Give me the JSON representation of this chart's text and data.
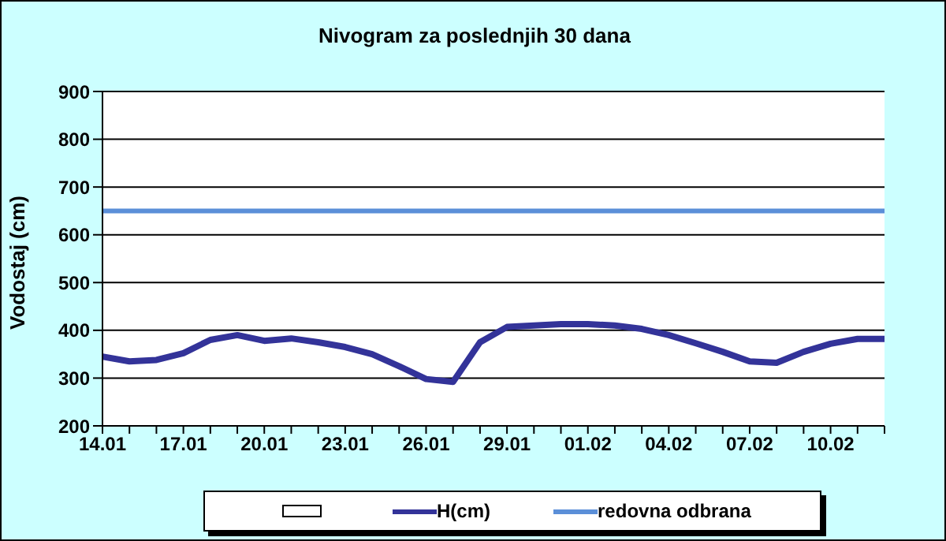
{
  "chart_data": {
    "type": "line",
    "title": "Nivogram za poslednjih 30 dana",
    "ylabel": "Vodostaj (cm)",
    "categories": [
      "14.01",
      null,
      null,
      "17.01",
      null,
      null,
      "20.01",
      null,
      null,
      "23.01",
      null,
      null,
      "26.01",
      null,
      null,
      "29.01",
      null,
      null,
      "01.02",
      null,
      null,
      "04.02",
      null,
      null,
      "07.02",
      null,
      null,
      "10.02",
      null,
      null
    ],
    "series": [
      {
        "name": "H(cm)",
        "color": "#333399",
        "values": [
          345,
          335,
          338,
          352,
          380,
          390,
          378,
          383,
          375,
          365,
          350,
          325,
          298,
          292,
          375,
          407,
          410,
          413,
          413,
          410,
          403,
          390,
          373,
          355,
          335,
          332,
          355,
          372,
          382,
          382
        ]
      }
    ],
    "ref_lines": [
      {
        "axis": "y",
        "value": 650,
        "label": "redovna odbrana",
        "color": "#5b8fd8"
      }
    ],
    "ylim": [
      200,
      900
    ],
    "yticks": [
      200,
      300,
      400,
      500,
      600,
      700,
      800,
      900
    ],
    "grid": "y",
    "legend": "bottom",
    "marker": "none",
    "line_style": "solid"
  }
}
